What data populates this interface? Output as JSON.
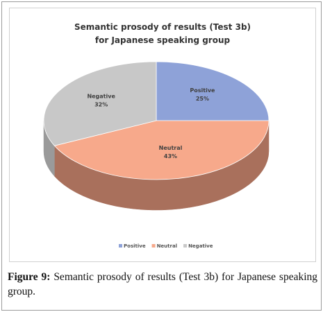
{
  "chart_data": {
    "type": "pie3d",
    "title": [
      "Semantic prosody of results (Test 3b)",
      "for Japanese speaking group"
    ],
    "categories": [
      "Positive",
      "Neutral",
      "Negative"
    ],
    "values": [
      25,
      43,
      32
    ],
    "value_labels": [
      "25%",
      "43%",
      "32%"
    ],
    "colors": [
      "#8ea2d8",
      "#f7a98b",
      "#c8c8c8"
    ],
    "side_colors": [
      "#6c7fb0",
      "#a9705c",
      "#9a9a9a"
    ],
    "legend": "bottom"
  },
  "caption": {
    "label": "Figure 9:",
    "text": "Semantic prosody of results (Test 3b) for Japanese speaking group."
  }
}
